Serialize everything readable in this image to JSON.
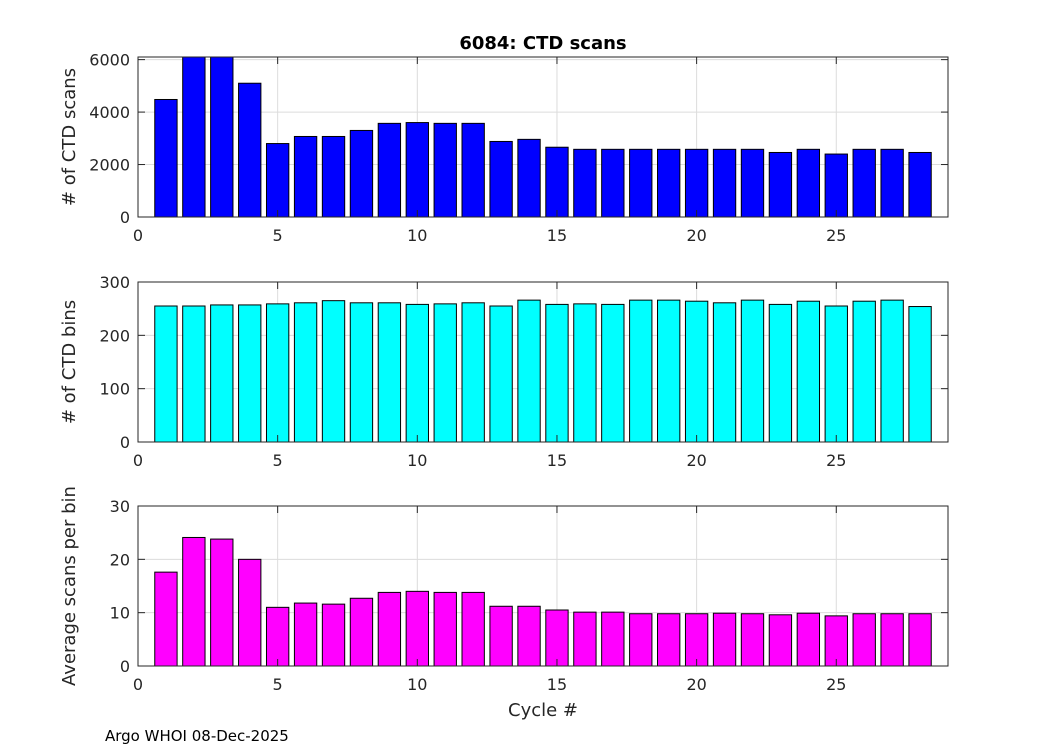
{
  "footer": "Argo WHOI 08-Dec-2025",
  "chart_data": [
    {
      "type": "bar",
      "title": "6084: CTD scans",
      "xlabel": "",
      "ylabel": "# of CTD scans",
      "xlim": [
        0,
        29
      ],
      "ylim": [
        0,
        6100
      ],
      "xticks": [
        0,
        5,
        10,
        15,
        20,
        25
      ],
      "yticks": [
        0,
        2000,
        4000,
        6000
      ],
      "color": "#0000ff",
      "x": [
        1,
        2,
        3,
        4,
        5,
        6,
        7,
        8,
        9,
        10,
        11,
        12,
        13,
        14,
        15,
        16,
        17,
        18,
        19,
        20,
        21,
        22,
        23,
        24,
        25,
        26,
        27,
        28
      ],
      "values": [
        4480,
        6100,
        6100,
        5100,
        2800,
        3070,
        3070,
        3300,
        3570,
        3600,
        3570,
        3570,
        2880,
        2960,
        2660,
        2580,
        2580,
        2580,
        2580,
        2580,
        2580,
        2580,
        2460,
        2580,
        2400,
        2580,
        2580,
        2460
      ]
    },
    {
      "type": "bar",
      "title": "",
      "xlabel": "",
      "ylabel": "# of CTD bins",
      "xlim": [
        0,
        29
      ],
      "ylim": [
        0,
        300
      ],
      "xticks": [
        0,
        5,
        10,
        15,
        20,
        25
      ],
      "yticks": [
        0,
        100,
        200,
        300
      ],
      "color": "#00ffff",
      "x": [
        1,
        2,
        3,
        4,
        5,
        6,
        7,
        8,
        9,
        10,
        11,
        12,
        13,
        14,
        15,
        16,
        17,
        18,
        19,
        20,
        21,
        22,
        23,
        24,
        25,
        26,
        27,
        28
      ],
      "values": [
        255,
        255,
        257,
        257,
        259,
        261,
        265,
        261,
        261,
        258,
        259,
        261,
        255,
        266,
        258,
        259,
        258,
        266,
        266,
        264,
        261,
        266,
        258,
        264,
        255,
        264,
        266,
        254
      ]
    },
    {
      "type": "bar",
      "title": "",
      "xlabel": "Cycle #",
      "ylabel": "Average scans per bin",
      "xlim": [
        0,
        29
      ],
      "ylim": [
        0,
        30
      ],
      "xticks": [
        0,
        5,
        10,
        15,
        20,
        25
      ],
      "yticks": [
        0,
        10,
        20,
        30
      ],
      "color": "#ff00ff",
      "x": [
        1,
        2,
        3,
        4,
        5,
        6,
        7,
        8,
        9,
        10,
        11,
        12,
        13,
        14,
        15,
        16,
        17,
        18,
        19,
        20,
        21,
        22,
        23,
        24,
        25,
        26,
        27,
        28
      ],
      "values": [
        17.6,
        24.1,
        23.8,
        20.0,
        11.0,
        11.8,
        11.6,
        12.7,
        13.8,
        14.0,
        13.8,
        13.8,
        11.2,
        11.2,
        10.5,
        10.1,
        10.1,
        9.8,
        9.8,
        9.8,
        9.9,
        9.8,
        9.6,
        9.9,
        9.4,
        9.8,
        9.8,
        9.8
      ]
    }
  ]
}
